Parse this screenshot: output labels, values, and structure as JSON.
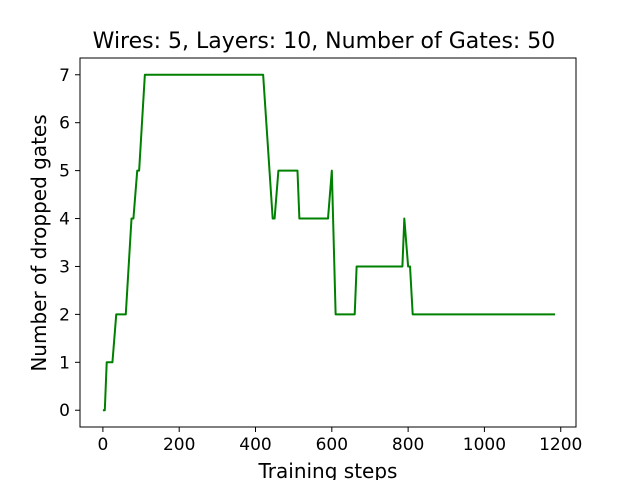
{
  "chart_data": {
    "type": "line",
    "title": "Wires: 5, Layers: 10, Number of Gates: 50",
    "xlabel": "Training steps",
    "ylabel": "Number of dropped gates",
    "xlim": [
      -60,
      1240
    ],
    "ylim": [
      -0.35,
      7.35
    ],
    "xticks": [
      0,
      200,
      400,
      600,
      800,
      1000,
      1200
    ],
    "xtick_labels": [
      "0",
      "200",
      "400",
      "600",
      "800",
      "1000",
      "1200"
    ],
    "yticks": [
      0,
      1,
      2,
      3,
      4,
      5,
      6,
      7
    ],
    "ytick_labels": [
      "0",
      "1",
      "2",
      "3",
      "4",
      "5",
      "6",
      "7"
    ],
    "grid": false,
    "series": [
      {
        "color": "#008000",
        "points": [
          [
            0,
            0
          ],
          [
            5,
            0
          ],
          [
            10,
            1
          ],
          [
            20,
            1
          ],
          [
            25,
            1
          ],
          [
            35,
            2
          ],
          [
            50,
            2
          ],
          [
            60,
            2
          ],
          [
            75,
            4
          ],
          [
            80,
            4
          ],
          [
            90,
            5
          ],
          [
            95,
            5
          ],
          [
            110,
            7
          ],
          [
            200,
            7
          ],
          [
            300,
            7
          ],
          [
            420,
            7
          ],
          [
            445,
            4
          ],
          [
            450,
            4
          ],
          [
            460,
            5
          ],
          [
            480,
            5
          ],
          [
            510,
            5
          ],
          [
            515,
            4
          ],
          [
            560,
            4
          ],
          [
            590,
            4
          ],
          [
            600,
            5
          ],
          [
            610,
            2
          ],
          [
            650,
            2
          ],
          [
            660,
            2
          ],
          [
            665,
            3
          ],
          [
            700,
            3
          ],
          [
            785,
            3
          ],
          [
            790,
            4
          ],
          [
            800,
            3
          ],
          [
            805,
            3
          ],
          [
            812,
            2
          ],
          [
            1000,
            2
          ],
          [
            1185,
            2
          ]
        ]
      }
    ]
  }
}
